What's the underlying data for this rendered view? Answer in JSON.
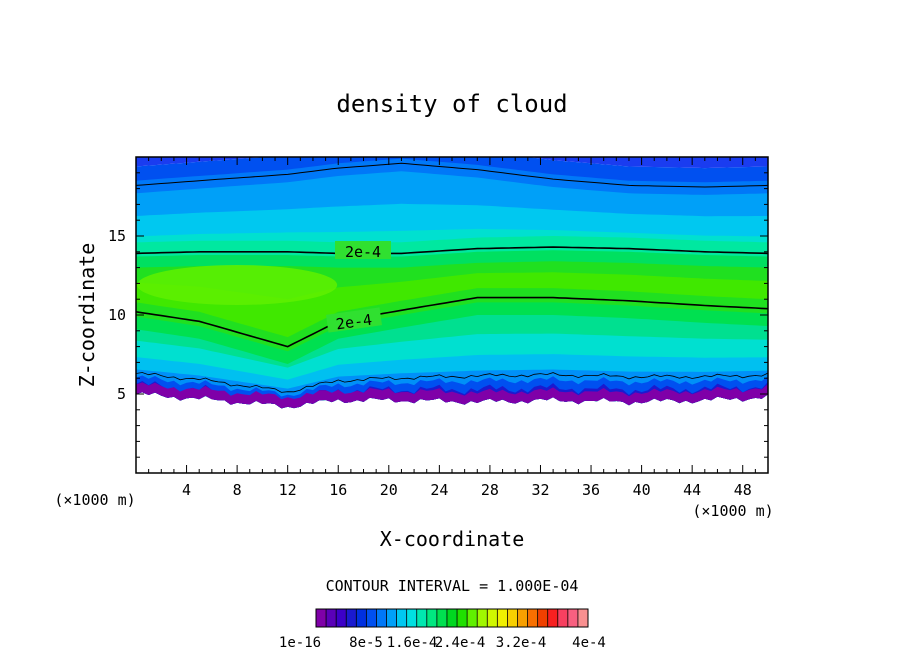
{
  "chart_data": {
    "type": "heatmap",
    "title": "density of cloud",
    "xlabel": "X-coordinate",
    "ylabel": "Z-coordinate",
    "x_unit": "(×1000 m)",
    "z_unit": "(×1000 m)",
    "xlim": [
      0,
      50
    ],
    "ylim": [
      0,
      20
    ],
    "x_ticks": [
      4,
      8,
      12,
      16,
      20,
      24,
      28,
      32,
      36,
      40,
      44,
      48
    ],
    "y_ticks": [
      5,
      10,
      15
    ],
    "contour_interval_text": "CONTOUR INTERVAL = 1.000E-04",
    "contour_labels": [
      {
        "text": "2e-4",
        "x": 18,
        "z": 14.0
      },
      {
        "text": "2e-4",
        "x": 17,
        "z": 9.6
      }
    ],
    "colorbar": {
      "tick_labels": [
        "1e-16",
        "8e-5",
        "1.6e-4",
        "2.4e-4",
        "3.2e-4",
        "4e-4"
      ],
      "colors": [
        "#7f00a8",
        "#5a00b8",
        "#3c00c8",
        "#1a1ad0",
        "#0030e0",
        "#0050f0",
        "#0078f8",
        "#00a0f8",
        "#00c8f0",
        "#00e0e0",
        "#00e8b0",
        "#00e880",
        "#00e050",
        "#00d820",
        "#20e000",
        "#60f000",
        "#a0f800",
        "#d0f800",
        "#f0f000",
        "#f8d000",
        "#f8a000",
        "#f87000",
        "#f04000",
        "#f82020",
        "#f84060",
        "#f86080",
        "#f89090"
      ]
    },
    "fields": {
      "top_contour_z": [
        18.2,
        18.5,
        18.9,
        19.3,
        19.6,
        19.2,
        18.6,
        18.2,
        18.1,
        18.2
      ],
      "upper_2e4_z": [
        13.9,
        14.0,
        14.0,
        13.9,
        13.9,
        14.2,
        14.3,
        14.2,
        14.0,
        13.9
      ],
      "lower_2e4_z": [
        10.2,
        9.6,
        8.0,
        9.6,
        10.3,
        11.1,
        11.1,
        10.9,
        10.6,
        10.4
      ],
      "cloud_base_z": [
        5.0,
        4.7,
        4.2,
        4.6,
        4.6,
        4.5,
        4.6,
        4.5,
        4.6,
        4.8
      ],
      "x_samples": [
        0,
        5,
        12,
        16,
        21,
        27,
        33,
        39,
        45,
        50
      ]
    }
  }
}
